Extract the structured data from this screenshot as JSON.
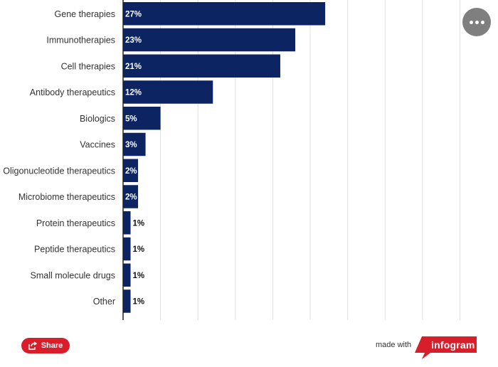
{
  "chart_data": {
    "type": "bar",
    "orientation": "horizontal",
    "categories": [
      "Gene therapies",
      "Immunotherapies",
      "Cell therapies",
      "Antibody therapeutics",
      "Biologics",
      "Vaccines",
      "Oligonucleotide therapeutics",
      "Microbiome therapeutics",
      "Protein therapeutics",
      "Peptide therapeutics",
      "Small molecule drugs",
      "Other"
    ],
    "values": [
      27,
      23,
      21,
      12,
      5,
      3,
      2,
      2,
      1,
      1,
      1,
      1
    ],
    "value_labels": [
      "27%",
      "23%",
      "21%",
      "12%",
      "5%",
      "3%",
      "2%",
      "2%",
      "1%",
      "1%",
      "1%",
      "1%"
    ],
    "xlim": [
      0,
      45
    ],
    "grid": true,
    "bar_color": "#0c2461",
    "grid_color": "#e0e0e0"
  },
  "ui": {
    "share_label": "Share",
    "made_with_label": "made with",
    "brand_label": "infogram",
    "brand_color": "#d81e2a",
    "menu_icon": "more-horizontal-icon",
    "share_icon": "share-icon"
  }
}
